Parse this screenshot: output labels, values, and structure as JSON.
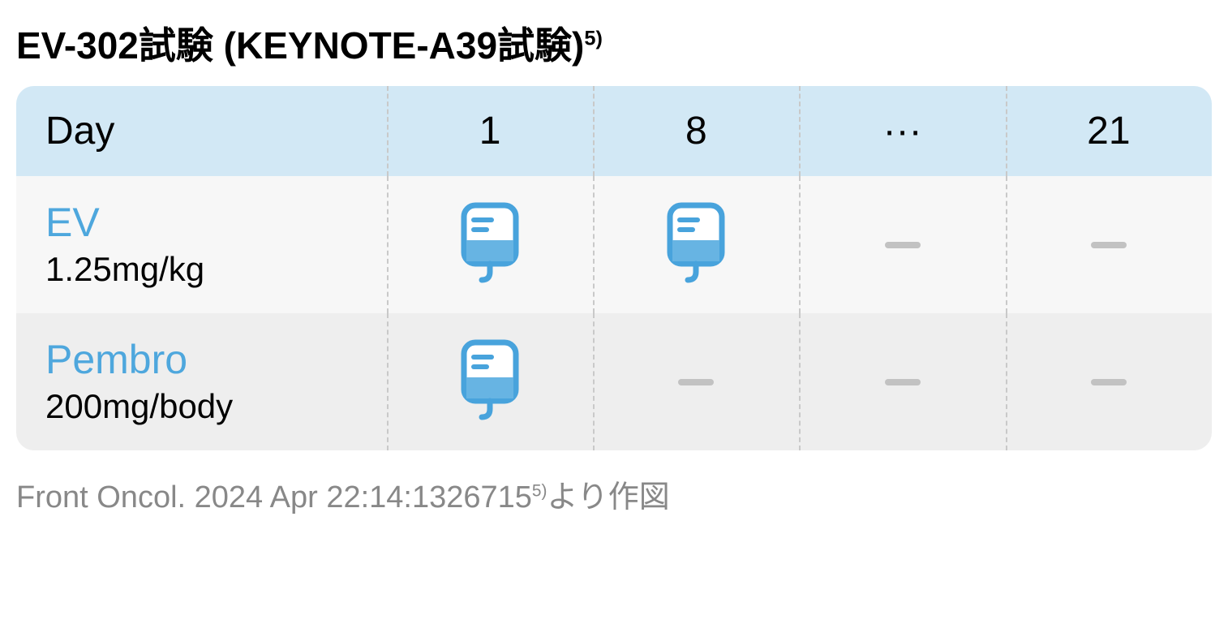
{
  "title": {
    "main": "EV-302試験 (KEYNOTE-A39試験)",
    "sup": "5)"
  },
  "colors": {
    "header_bg": "#d2e8f5",
    "row_bg_1": "#f7f7f7",
    "row_bg_2": "#eeeeee",
    "drug_name_color": "#4ea7dd",
    "icon_stroke": "#48a3dc",
    "icon_fill": "#67b4e3",
    "dash_color": "#c2c2c2",
    "separator_color": "#c9c9c9"
  },
  "schedule": {
    "header_label": "Day",
    "days": [
      "1",
      "8",
      "···",
      "21"
    ],
    "rows": [
      {
        "name": "EV",
        "dose": "1.25mg/kg",
        "cells": [
          "iv",
          "iv",
          "dash",
          "dash"
        ]
      },
      {
        "name": "Pembro",
        "dose": "200mg/body",
        "cells": [
          "iv",
          "dash",
          "dash",
          "dash"
        ]
      }
    ],
    "col_widths": {
      "label": 31,
      "day": 17.25
    }
  },
  "citation": {
    "text_before": "Front Oncol. 2024 Apr 22:14:1326715",
    "sup": "5)",
    "text_after": "より作図"
  }
}
